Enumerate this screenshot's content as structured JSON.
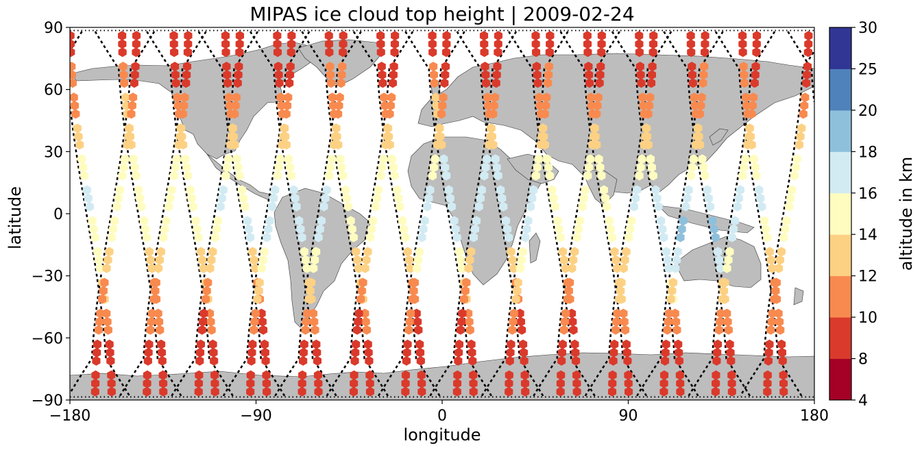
{
  "chart_data": {
    "type": "scatter",
    "title": "MIPAS ice cloud top height | 2009-02-24",
    "xlabel": "longitude",
    "ylabel": "latitude",
    "xlim": [
      -180,
      180
    ],
    "ylim": [
      -90,
      90
    ],
    "xticks": [
      -180,
      -90,
      0,
      90,
      180
    ],
    "yticks": [
      -90,
      -60,
      -30,
      0,
      30,
      60,
      90
    ],
    "xtick_labels": [
      "−180",
      "−90",
      "0",
      "90",
      "180"
    ],
    "ytick_labels": [
      "−90",
      "−60",
      "−30",
      "0",
      "30",
      "60",
      "90"
    ],
    "grid": false,
    "basemap": "world coastlines, land filled gray",
    "colorbar": {
      "label": "altitude in km",
      "boundaries": [
        4,
        8,
        10,
        12,
        14,
        16,
        18,
        20,
        25,
        30
      ],
      "tick_labels": [
        "4",
        "8",
        "10",
        "12",
        "14",
        "16",
        "18",
        "20",
        "25",
        "30"
      ],
      "colors": [
        "#a50026",
        "#d73027",
        "#f46d43",
        "#fdae61",
        "#fee090",
        "#ffffbf",
        "#e0f3f8",
        "#abd9e9",
        "#74add1",
        "#313695"
      ],
      "display_colors": [
        "#a50026",
        "#da3a2b",
        "#f88a4f",
        "#fdd184",
        "#fffcc0",
        "#d2ebf3",
        "#8ec0dc",
        "#4f82bb",
        "#313695"
      ]
    },
    "land_color": "#bdbdbd",
    "track_color": "#000000",
    "series": [
      {
        "kind": "descending",
        "lon0": -172,
        "values": [
          9,
          10,
          11,
          13,
          15,
          16,
          15,
          14,
          12,
          11,
          9,
          8
        ]
      },
      {
        "kind": "descending",
        "lon0": -147,
        "values": [
          8,
          11,
          12,
          13,
          15,
          15,
          14,
          13,
          11,
          10,
          9,
          8
        ]
      },
      {
        "kind": "descending",
        "lon0": -122,
        "values": [
          8,
          9,
          11,
          13,
          14,
          15,
          14,
          13,
          12,
          10,
          9,
          8
        ]
      },
      {
        "kind": "descending",
        "lon0": -97,
        "values": [
          8,
          9,
          10,
          12,
          14,
          15,
          16,
          13,
          11,
          9,
          8,
          8
        ]
      },
      {
        "kind": "descending",
        "lon0": -72,
        "values": [
          8,
          9,
          11,
          13,
          15,
          17,
          17,
          14,
          12,
          10,
          8,
          8
        ]
      },
      {
        "kind": "descending",
        "lon0": -47,
        "values": [
          8,
          10,
          11,
          13,
          15,
          15,
          14,
          13,
          12,
          10,
          9,
          8
        ]
      },
      {
        "kind": "descending",
        "lon0": -22,
        "values": [
          8,
          9,
          10,
          12,
          14,
          15,
          14,
          13,
          11,
          9,
          8,
          8
        ]
      },
      {
        "kind": "descending",
        "lon0": 3,
        "values": [
          8,
          10,
          12,
          13,
          16,
          17,
          16,
          14,
          12,
          10,
          8,
          8
        ]
      },
      {
        "kind": "descending",
        "lon0": 28,
        "values": [
          8,
          9,
          11,
          13,
          16,
          17,
          16,
          13,
          11,
          9,
          8,
          8
        ]
      },
      {
        "kind": "descending",
        "lon0": 53,
        "values": [
          8,
          9,
          10,
          12,
          14,
          15,
          14,
          12,
          11,
          9,
          8,
          8
        ]
      },
      {
        "kind": "descending",
        "lon0": 78,
        "values": [
          8,
          9,
          11,
          12,
          14,
          15,
          15,
          13,
          12,
          10,
          9,
          8
        ]
      },
      {
        "kind": "descending",
        "lon0": 103,
        "values": [
          8,
          9,
          11,
          13,
          15,
          16,
          17,
          17,
          14,
          11,
          9,
          8
        ]
      },
      {
        "kind": "descending",
        "lon0": 128,
        "values": [
          8,
          9,
          10,
          12,
          14,
          17,
          18,
          17,
          12,
          10,
          9,
          8
        ]
      },
      {
        "kind": "descending",
        "lon0": 153,
        "values": [
          8,
          10,
          11,
          13,
          15,
          16,
          15,
          13,
          11,
          10,
          9,
          8
        ]
      },
      {
        "kind": "ascending",
        "lon0": -160,
        "values": [
          8,
          9,
          10,
          12,
          14,
          15,
          14,
          12,
          11,
          10,
          9,
          8
        ]
      },
      {
        "kind": "ascending",
        "lon0": -135,
        "values": [
          8,
          9,
          11,
          13,
          14,
          15,
          14,
          13,
          11,
          10,
          9,
          8
        ]
      },
      {
        "kind": "ascending",
        "lon0": -110,
        "values": [
          8,
          9,
          10,
          12,
          14,
          16,
          15,
          13,
          11,
          9,
          8,
          8
        ]
      },
      {
        "kind": "ascending",
        "lon0": -85,
        "values": [
          8,
          9,
          11,
          13,
          15,
          16,
          17,
          14,
          12,
          10,
          8,
          8
        ]
      },
      {
        "kind": "ascending",
        "lon0": -60,
        "values": [
          8,
          10,
          11,
          13,
          15,
          17,
          16,
          14,
          12,
          10,
          9,
          8
        ]
      },
      {
        "kind": "ascending",
        "lon0": -35,
        "values": [
          8,
          9,
          11,
          13,
          14,
          15,
          14,
          13,
          11,
          9,
          8,
          8
        ]
      },
      {
        "kind": "ascending",
        "lon0": -10,
        "values": [
          8,
          9,
          10,
          12,
          15,
          17,
          16,
          14,
          11,
          10,
          9,
          8
        ]
      },
      {
        "kind": "ascending",
        "lon0": 15,
        "values": [
          8,
          9,
          11,
          13,
          16,
          17,
          16,
          13,
          11,
          9,
          8,
          8
        ]
      },
      {
        "kind": "ascending",
        "lon0": 40,
        "values": [
          8,
          10,
          11,
          12,
          14,
          17,
          16,
          14,
          12,
          10,
          9,
          8
        ]
      },
      {
        "kind": "ascending",
        "lon0": 65,
        "values": [
          8,
          9,
          10,
          12,
          14,
          15,
          14,
          13,
          11,
          10,
          9,
          8
        ]
      },
      {
        "kind": "ascending",
        "lon0": 90,
        "values": [
          8,
          9,
          11,
          13,
          15,
          16,
          15,
          13,
          12,
          10,
          9,
          8
        ]
      },
      {
        "kind": "ascending",
        "lon0": 115,
        "values": [
          8,
          10,
          11,
          13,
          15,
          17,
          18,
          17,
          13,
          11,
          9,
          8
        ]
      },
      {
        "kind": "ascending",
        "lon0": 140,
        "values": [
          8,
          9,
          11,
          13,
          15,
          17,
          17,
          15,
          12,
          10,
          9,
          8
        ]
      },
      {
        "kind": "ascending",
        "lon0": 165,
        "values": [
          8,
          9,
          10,
          12,
          14,
          15,
          14,
          13,
          11,
          10,
          9,
          8
        ]
      }
    ]
  }
}
